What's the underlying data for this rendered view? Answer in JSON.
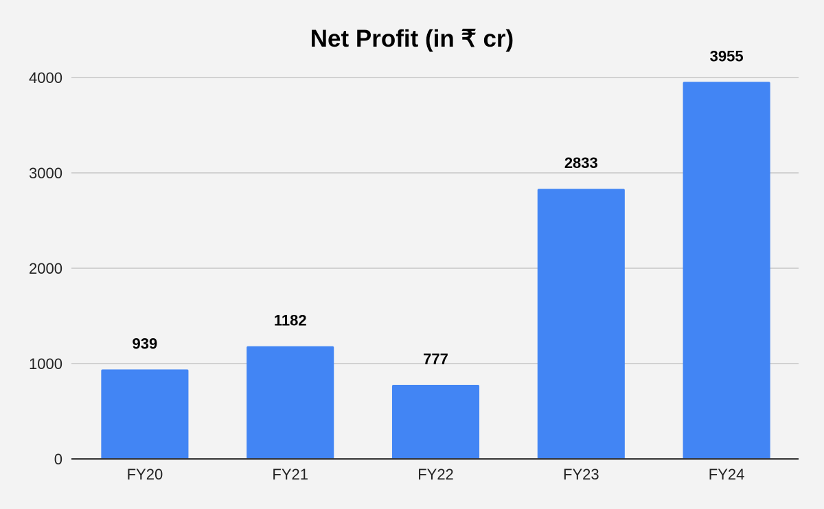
{
  "chart_data": {
    "type": "bar",
    "title": "Net Profit (in ₹ cr)",
    "xlabel": "",
    "ylabel": "",
    "categories": [
      "FY20",
      "FY21",
      "FY22",
      "FY23",
      "FY24"
    ],
    "series": [
      {
        "values": [
          939,
          1182,
          777,
          2833,
          3955
        ]
      }
    ],
    "ylim": [
      0,
      4000
    ],
    "yticks": [
      0,
      1000,
      2000,
      3000,
      4000
    ],
    "data_labels": true,
    "grid": true,
    "legend": "none",
    "colors": {
      "bar": "#4285f4",
      "background": "#f3f3f3",
      "gridline": "#c6c6c6"
    }
  }
}
